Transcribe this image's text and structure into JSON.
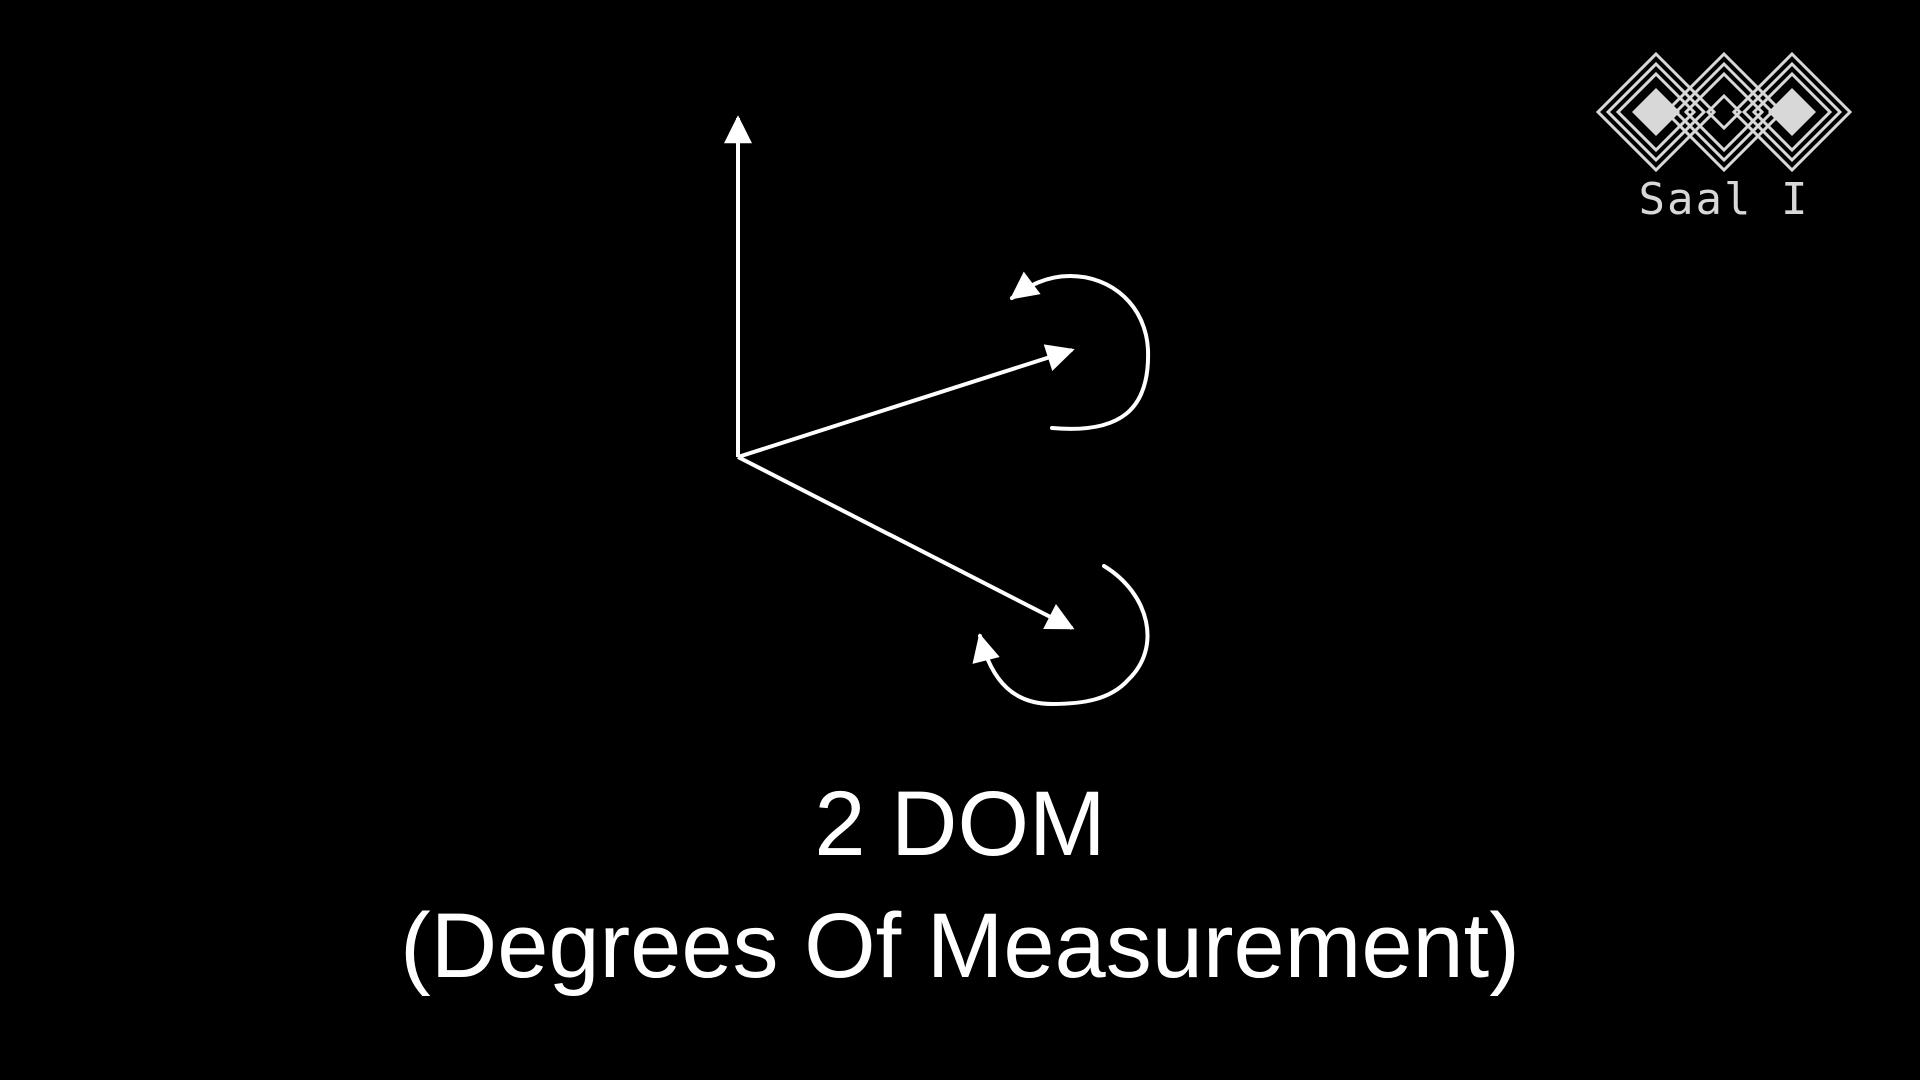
{
  "slide": {
    "title_line1": "2 DOM",
    "title_line2": "(Degrees Of Measurement)",
    "background_color": "#000000",
    "text_color": "#ffffff"
  },
  "logo": {
    "label": "Saal I",
    "icon": "ccc-logo-icon",
    "color": "#d8d8d8"
  },
  "diagram": {
    "elements": [
      {
        "name": "vertical-axis-arrow",
        "icon": "arrow-up-icon"
      },
      {
        "name": "upper-vector-arrow",
        "icon": "arrow-icon"
      },
      {
        "name": "lower-vector-arrow",
        "icon": "arrow-icon"
      },
      {
        "name": "upper-rotation-arrow",
        "icon": "curved-arrow-icon"
      },
      {
        "name": "lower-rotation-arrow",
        "icon": "curved-arrow-icon"
      }
    ],
    "stroke_color": "#ffffff"
  }
}
